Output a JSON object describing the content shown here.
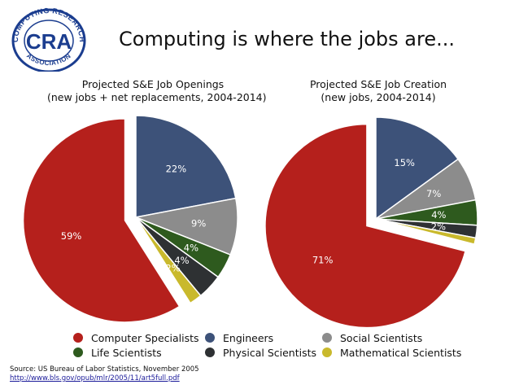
{
  "logo": {
    "initials": "CRA",
    "ring_text_top": "COMPUTING RESEARCH",
    "ring_text_bottom": "ASSOCIATION",
    "colors": {
      "ring": "#1b3d8f",
      "letters": "#1b3d8f"
    }
  },
  "title": "Computing is where the jobs are...",
  "chart_data": [
    {
      "type": "pie",
      "title": "Projected S&E Job Openings",
      "subtitle": "(new jobs + net replacements, 2004-2014)",
      "categories": [
        "Computer Specialists",
        "Engineers",
        "Social Scientists",
        "Life Scientists",
        "Physical Scientists",
        "Mathematical Scientists"
      ],
      "values": [
        59,
        22,
        9,
        4,
        4,
        2
      ],
      "labels": [
        "59%",
        "22%",
        "9%",
        "4%",
        "4%",
        "2%"
      ],
      "exploded": "Computer Specialists"
    },
    {
      "type": "pie",
      "title": "Projected S&E Job Creation",
      "subtitle": "(new jobs, 2004-2014)",
      "categories": [
        "Computer Specialists",
        "Engineers",
        "Social Scientists",
        "Life Scientists",
        "Physical Scientists",
        "Mathematical Scientists"
      ],
      "values": [
        71,
        15,
        7,
        4,
        2,
        1
      ],
      "labels": [
        "71%",
        "15%",
        "7%",
        "4%",
        "2%",
        ""
      ],
      "exploded": "Computer Specialists"
    }
  ],
  "legend": [
    {
      "label": "Computer Specialists",
      "color": "#b5201c"
    },
    {
      "label": "Engineers",
      "color": "#3d5279"
    },
    {
      "label": "Social Scientists",
      "color": "#8c8c8c"
    },
    {
      "label": "Life Scientists",
      "color": "#2e5a1e"
    },
    {
      "label": "Physical Scientists",
      "color": "#2e3133"
    },
    {
      "label": "Mathematical Scientists",
      "color": "#c9b92c"
    }
  ],
  "source": {
    "line1": "Source: US Bureau of Labor Statistics, November 2005",
    "line2": "http://www.bls.gov/opub/mlr/2005/11/art5full.pdf"
  }
}
